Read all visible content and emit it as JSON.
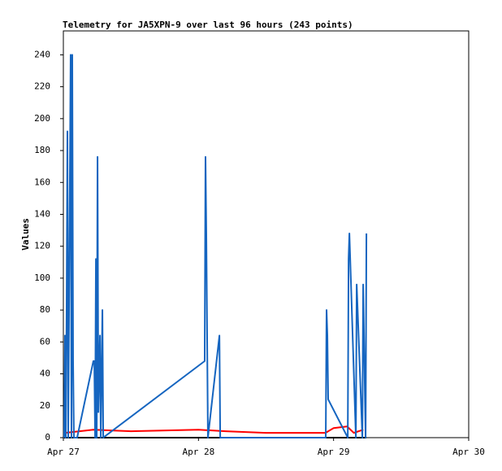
{
  "chart_data": {
    "type": "line",
    "title": "Telemetry for JA5XPN-9 over last 96 hours (243 points)",
    "y_label": "Values",
    "xlim": [
      0,
      3
    ],
    "xticks": [
      {
        "value": 0,
        "label": "Apr 27"
      },
      {
        "value": 1,
        "label": "Apr 28"
      },
      {
        "value": 2,
        "label": "Apr 29"
      },
      {
        "value": 3,
        "label": "Apr 30"
      }
    ],
    "ylim": [
      0,
      255
    ],
    "yticks": [
      0,
      20,
      40,
      60,
      80,
      100,
      120,
      140,
      160,
      180,
      200,
      220,
      240
    ],
    "series": [
      {
        "color": "#000000",
        "x": [
          0.006,
          2.243
        ],
        "values": [
          0,
          0
        ]
      },
      {
        "color": "#ff0000",
        "x": [
          0.012,
          0.222,
          0.5,
          1.0,
          1.2,
          1.5,
          1.94,
          2.0,
          2.1,
          2.15,
          2.22
        ],
        "values": [
          3,
          5,
          4,
          5,
          4,
          3,
          3,
          6,
          7,
          3,
          5
        ]
      },
      {
        "color": "#1565c0",
        "x": [
          0.006,
          0.012,
          0.018,
          0.024,
          0.03,
          0.036,
          0.048,
          0.054,
          0.06,
          0.066,
          0.072,
          0.078,
          0.102,
          0.222,
          0.229,
          0.235,
          0.241,
          0.247,
          0.253,
          0.259,
          0.271,
          0.277,
          0.289,
          0.295,
          1.046,
          1.052,
          1.058,
          1.064,
          1.07,
          1.155,
          1.161,
          1.942,
          1.948,
          1.954,
          1.96,
          2.105,
          2.111,
          2.117,
          2.165,
          2.171,
          2.213,
          2.219,
          2.225,
          2.237,
          2.243
        ],
        "values": [
          0,
          64,
          0,
          80,
          192,
          0,
          160,
          240,
          0,
          240,
          48,
          0,
          0,
          48,
          48,
          0,
          112,
          0,
          176,
          16,
          64,
          0,
          80,
          0,
          48,
          176,
          128,
          64,
          0,
          64,
          0,
          0,
          80,
          64,
          24,
          0,
          112,
          128,
          0,
          96,
          0,
          96,
          64,
          0,
          128
        ]
      }
    ]
  }
}
